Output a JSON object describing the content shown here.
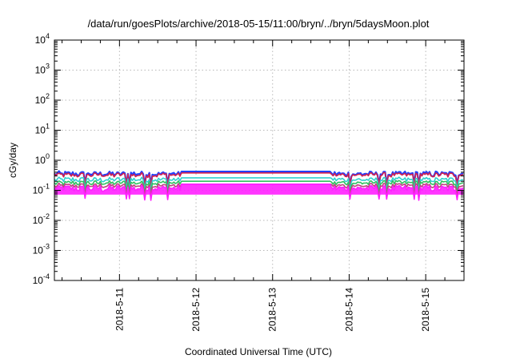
{
  "chart_data": {
    "type": "line",
    "title": "/data/run/goesPlots/archive/2018-05-15/11:00/bryn/../bryn/5daysMoon.plot",
    "xlabel": "Coordinated Universal Time (UTC)",
    "ylabel": "cGy/day",
    "yscale": "log",
    "ylim_exp": [
      -4,
      4
    ],
    "y_tick_exponents": [
      -4,
      -3,
      -2,
      -1,
      0,
      1,
      2,
      3,
      4
    ],
    "xlim_days": [
      10.15,
      15.5
    ],
    "x_ticks": [
      {
        "label": "2018-5-11",
        "day": 11
      },
      {
        "label": "2018-5-12",
        "day": 12
      },
      {
        "label": "2018-5-13",
        "day": 13
      },
      {
        "label": "2018-5-14",
        "day": 14
      },
      {
        "label": "2018-5-15",
        "day": 15
      }
    ],
    "grid": true,
    "data_gap_days": [
      11.8,
      13.75
    ],
    "series": [
      {
        "color": "#2040ff",
        "flat_value": 0.42,
        "level": 0.36,
        "noise": 0.18
      },
      {
        "color": "#d02050",
        "flat_value": 0.38,
        "level": 0.33,
        "noise": 0.16
      },
      {
        "color": "#30d0d0",
        "flat_value": 0.26,
        "level": 0.23,
        "noise": 0.16
      },
      {
        "color": "#30c060",
        "flat_value": 0.2,
        "level": 0.18,
        "noise": 0.16
      },
      {
        "color": "#c04080",
        "flat_value": 0.16,
        "level": 0.145,
        "noise": 0.16
      },
      {
        "color": "#ff20ff",
        "flat_value": 0.16,
        "level": 0.12,
        "noise": 0.22,
        "fill": true
      }
    ]
  }
}
